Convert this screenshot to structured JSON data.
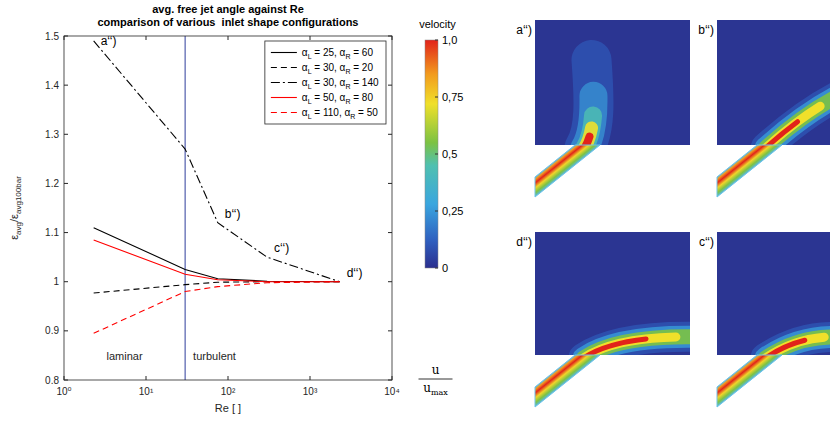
{
  "chart_data": [
    {
      "type": "line",
      "title": "avg. free jet angle against Re",
      "subtitle": "comparison of various  inlet shape configurations",
      "x_label": "Re [ ]",
      "y_label": "εavg/εavg100bar",
      "log": "x",
      "grid": false,
      "legend": "upper right",
      "xlim": [
        1,
        10000
      ],
      "xticks": [
        {
          "value": 1,
          "label": "10⁰"
        },
        {
          "value": 10,
          "label": "10¹"
        },
        {
          "value": 100,
          "label": "10²"
        },
        {
          "value": 1000,
          "label": "10³"
        },
        {
          "value": 10000,
          "label": "10⁴"
        }
      ],
      "ylim": [
        0.8,
        1.5
      ],
      "yticks": [
        0.8,
        0.9,
        1,
        1.1,
        1.2,
        1.3,
        1.4,
        1.5
      ],
      "x": [
        2.3,
        30,
        75,
        300,
        2300
      ],
      "boundary": {
        "x": 30,
        "labels": [
          "laminar",
          "turbulent"
        ]
      },
      "series": [
        {
          "name": "αL = 25, αR = 60",
          "color": "#000000",
          "line_style": "solid",
          "values": [
            1.11,
            1.025,
            1.006,
            1.001,
            1.0
          ]
        },
        {
          "name": "αL = 30, αR = 20",
          "color": "#000000",
          "line_style": "dashed",
          "values": [
            0.977,
            0.994,
            0.999,
            1.0,
            1.0
          ]
        },
        {
          "name": "αL = 30, αR = 140",
          "color": "#000000",
          "line_style": "dashdot",
          "values": [
            1.49,
            1.27,
            1.12,
            1.05,
            1.0
          ],
          "point_labels": [
            "a‘‘)",
            null,
            "b‘‘)",
            "c‘‘)",
            "d‘‘)"
          ]
        },
        {
          "name": "αL = 50, αR = 80",
          "color": "#ff0000",
          "line_style": "solid",
          "values": [
            1.085,
            1.015,
            1.004,
            1.0,
            1.0
          ]
        },
        {
          "name": "αL = 110, αR = 50",
          "color": "#ff0000",
          "line_style": "dashed",
          "values": [
            0.895,
            0.98,
            0.99,
            0.998,
            1.0
          ]
        }
      ]
    },
    {
      "type": "image_panels",
      "panels": [
        "a‘‘)",
        "b‘‘)",
        "d‘‘)",
        "c‘‘)"
      ],
      "colorbar": {
        "title": "velocity",
        "range": [
          0,
          1
        ],
        "ticks": [
          0,
          {
            "value": 0.25,
            "label": "0,25"
          },
          {
            "value": 0.5,
            "label": "0,5"
          },
          {
            "value": 0.75,
            "label": "0,75"
          },
          {
            "value": 1,
            "label": "1,0"
          }
        ],
        "label": [
          "u",
          "umax"
        ]
      }
    }
  ]
}
